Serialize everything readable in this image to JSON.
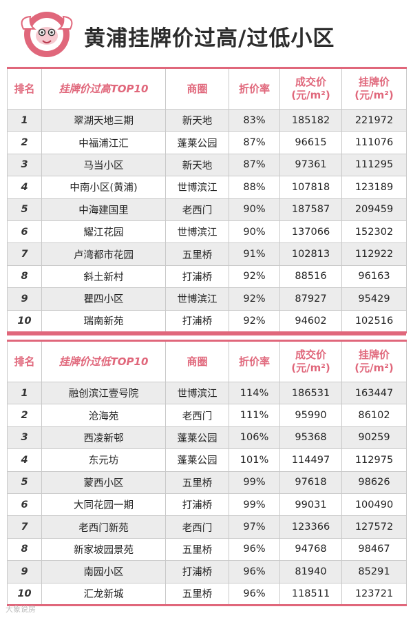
{
  "title": "黄浦挂牌价过高/过低小区",
  "colors": {
    "accent": "#e0677b",
    "stripe": "#ececec"
  },
  "headers_common": {
    "rank": "排名",
    "area": "商圈",
    "discount": "折价率",
    "deal_price_l1": "成交价",
    "deal_price_l2": "(元/m²)",
    "list_price_l1": "挂牌价",
    "list_price_l2": "(元/m²)"
  },
  "high": {
    "name_header": "挂牌价过高TOP10",
    "rows": [
      {
        "rank": "1",
        "name": "翠湖天地三期",
        "area": "新天地",
        "discount": "83%",
        "deal": "185182",
        "list": "221972"
      },
      {
        "rank": "2",
        "name": "中福浦江汇",
        "area": "蓬莱公园",
        "discount": "87%",
        "deal": "96615",
        "list": "111076"
      },
      {
        "rank": "3",
        "name": "马当小区",
        "area": "新天地",
        "discount": "87%",
        "deal": "97361",
        "list": "111295"
      },
      {
        "rank": "4",
        "name": "中南小区(黄浦)",
        "area": "世博滨江",
        "discount": "88%",
        "deal": "107818",
        "list": "123189"
      },
      {
        "rank": "5",
        "name": "中海建国里",
        "area": "老西门",
        "discount": "90%",
        "deal": "187587",
        "list": "209459"
      },
      {
        "rank": "6",
        "name": "耀江花园",
        "area": "世博滨江",
        "discount": "90%",
        "deal": "137066",
        "list": "152302"
      },
      {
        "rank": "7",
        "name": "卢湾都市花园",
        "area": "五里桥",
        "discount": "91%",
        "deal": "102813",
        "list": "112922"
      },
      {
        "rank": "8",
        "name": "斜土新村",
        "area": "打浦桥",
        "discount": "92%",
        "deal": "88516",
        "list": "96163"
      },
      {
        "rank": "9",
        "name": "瞿四小区",
        "area": "世博滨江",
        "discount": "92%",
        "deal": "87927",
        "list": "95429"
      },
      {
        "rank": "10",
        "name": "瑞南新苑",
        "area": "打浦桥",
        "discount": "92%",
        "deal": "94602",
        "list": "102516"
      }
    ]
  },
  "low": {
    "name_header": "挂牌价过低TOP10",
    "rows": [
      {
        "rank": "1",
        "name": "融创滨江壹号院",
        "area": "世博滨江",
        "discount": "114%",
        "deal": "186531",
        "list": "163447"
      },
      {
        "rank": "2",
        "name": "沧海苑",
        "area": "老西门",
        "discount": "111%",
        "deal": "95990",
        "list": "86102"
      },
      {
        "rank": "3",
        "name": "西凌新邨",
        "area": "蓬莱公园",
        "discount": "106%",
        "deal": "95368",
        "list": "90259"
      },
      {
        "rank": "4",
        "name": "东元坊",
        "area": "蓬莱公园",
        "discount": "101%",
        "deal": "114497",
        "list": "112975"
      },
      {
        "rank": "5",
        "name": "蒙西小区",
        "area": "五里桥",
        "discount": "99%",
        "deal": "97618",
        "list": "98626"
      },
      {
        "rank": "6",
        "name": "大同花园一期",
        "area": "打浦桥",
        "discount": "99%",
        "deal": "99031",
        "list": "100490"
      },
      {
        "rank": "7",
        "name": "老西门新苑",
        "area": "老西门",
        "discount": "97%",
        "deal": "123366",
        "list": "127572"
      },
      {
        "rank": "8",
        "name": "新家坡园景苑",
        "area": "五里桥",
        "discount": "96%",
        "deal": "94768",
        "list": "98467"
      },
      {
        "rank": "9",
        "name": "南园小区",
        "area": "打浦桥",
        "discount": "96%",
        "deal": "81940",
        "list": "85291"
      },
      {
        "rank": "10",
        "name": "汇龙新城",
        "area": "五里桥",
        "discount": "96%",
        "deal": "118511",
        "list": "123721"
      }
    ]
  },
  "watermark": "大象说房"
}
